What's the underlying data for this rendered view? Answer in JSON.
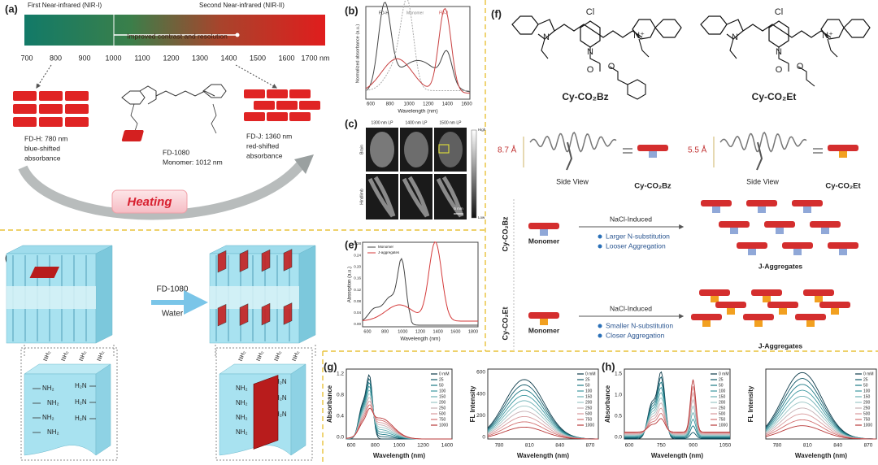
{
  "panel_a": {
    "label": "(a)",
    "nir1": "First Near-infrared (NIR-I)",
    "nir2": "Second Near-infrared (NIR-II)",
    "arrow_text": "Improved contrast and resolution",
    "ticks": [
      "700",
      "800",
      "900",
      "1000",
      "1100",
      "1200",
      "1300",
      "1400",
      "1500",
      "1600",
      "1700 nm"
    ],
    "fdh": [
      "FD-H: 780 nm",
      "blue-shifted",
      "absorbance"
    ],
    "monomer": [
      "FD-1080",
      "Monomer: 1012 nm"
    ],
    "fdj": [
      "FD-J: 1360 nm",
      "red-shifted",
      "absorbance"
    ],
    "heating": "Heating"
  },
  "panel_b": {
    "label": "(b)",
    "legend": [
      "FD-H",
      "Monomer",
      "FD-J"
    ],
    "ylabel": "Normalized absorbance (a.u.)",
    "xlabel": "Wavelength (nm)",
    "xticks": [
      "600",
      "800",
      "1000",
      "1200",
      "1400",
      "1600"
    ]
  },
  "panel_c": {
    "label": "(c)",
    "columns": [
      "1300 nm LP",
      "1400 nm LP",
      "1500 nm LP"
    ],
    "rows": [
      "Brain",
      "Hindlimb"
    ],
    "colorbar": [
      "High",
      "Low"
    ],
    "scale": "5 mm"
  },
  "panel_d": {
    "label": "(d)",
    "dye": "FD-1080",
    "solvent": "Water",
    "top_amines": [
      "NH₂",
      "NH₂",
      "NH₂",
      "NH₂"
    ],
    "left_amines": [
      "NH₂",
      "NH₂",
      "NH₂",
      "NH₂"
    ],
    "right_amines": [
      "H₂N",
      "H₂N",
      "H₂N"
    ]
  },
  "panel_e": {
    "label": "(e)",
    "legend": [
      "Monomer",
      "J-aggregates"
    ],
    "ylabel": "Absorption (a.u.)",
    "xlabel": "Wavelength (nm)",
    "yticks": [
      "0.28",
      "0.24",
      "0.20",
      "0.16",
      "0.12",
      "0.08",
      "0.04",
      "0.00"
    ],
    "xticks": [
      "600",
      "800",
      "1000",
      "1200",
      "1400",
      "1600",
      "1800"
    ]
  },
  "panel_f": {
    "label": "(f)",
    "molecules": [
      {
        "name": "Cy-CO₂Bz",
        "atoms": [
          "Cl",
          "N",
          "N⁺",
          "N",
          "O",
          "O"
        ]
      },
      {
        "name": "Cy-CO₂Et",
        "atoms": [
          "Cl",
          "N",
          "N⁺",
          "N",
          "O",
          "O"
        ]
      }
    ],
    "side_views": [
      {
        "distance": "8.7 Å",
        "caption": "Side View",
        "name": "Cy-CO₂Bz"
      },
      {
        "distance": "5.5 Å",
        "caption": "Side View",
        "name": "Cy-CO₂Et"
      }
    ],
    "rows": [
      {
        "name": "Cy-CO₂Bz",
        "monomer": "Monomer",
        "process": "NaCl-Induced",
        "bullets": [
          "Larger N-substitution",
          "Looser Aggregation"
        ],
        "product": "J-Aggregates"
      },
      {
        "name": "Cy-CO₂Et",
        "monomer": "Monomer",
        "process": "NaCl-Induced",
        "bullets": [
          "Smaller N-substitution",
          "Closer Aggregation"
        ],
        "product": "J-Aggregates"
      }
    ]
  },
  "panel_g": {
    "label": "(g)",
    "abs": {
      "ylabel": "Absorbance",
      "xlabel": "Wavelength (nm)",
      "yticks": [
        "1.2",
        "0.8",
        "0.4",
        "0.0"
      ],
      "xticks": [
        "600",
        "800",
        "1000",
        "1200",
        "1400"
      ]
    },
    "fl": {
      "ylabel": "FL Intensity",
      "xlabel": "Wavelength (nm)",
      "yticks": [
        "600",
        "400",
        "200",
        "0"
      ],
      "xticks": [
        "780",
        "810",
        "840",
        "870"
      ]
    },
    "legend": [
      "0 mM",
      "25",
      "50",
      "100",
      "150",
      "200",
      "250",
      "500",
      "750",
      "1000"
    ]
  },
  "panel_h": {
    "label": "(h)",
    "abs": {
      "ylabel": "Absorbance",
      "xlabel": "Wavelength (nm)",
      "yticks": [
        "1.5",
        "1.0",
        "0.5",
        "0.0"
      ],
      "xticks": [
        "600",
        "750",
        "900",
        "1050"
      ]
    },
    "fl": {
      "ylabel": "FL Intensity",
      "xlabel": "Wavelength (nm)",
      "xticks": [
        "780",
        "810",
        "840",
        "870"
      ]
    },
    "legend": [
      "0 mM",
      "25",
      "50",
      "100",
      "150",
      "200",
      "250",
      "500",
      "750",
      "1000"
    ]
  }
}
